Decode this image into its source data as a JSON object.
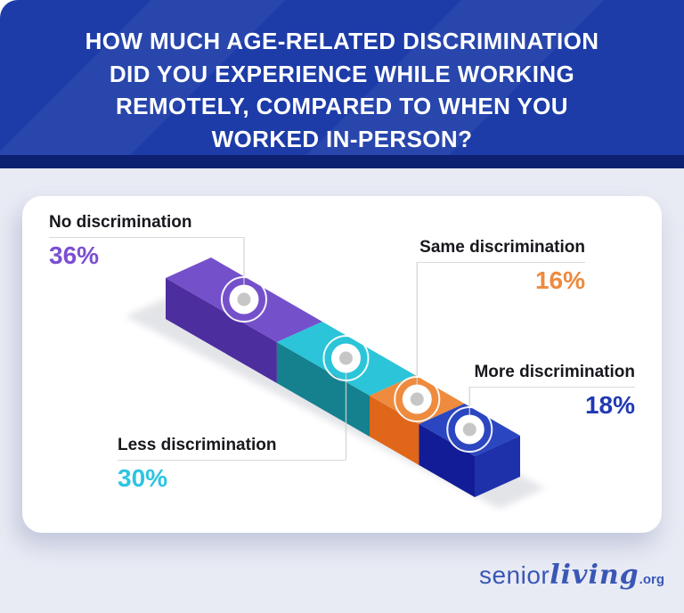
{
  "header": {
    "title_lines": [
      "HOW MUCH AGE-RELATED DISCRIMINATION",
      "DID YOU EXPERIENCE WHILE WORKING",
      "REMOTELY, COMPARED TO WHEN YOU",
      "WORKED IN-PERSON?"
    ],
    "bg_color": "#1d3ca8",
    "accent_strip_color": "#0d2173"
  },
  "chart_data": {
    "type": "bar",
    "subtype": "isometric-stacked-bar",
    "title": "How much age-related discrimination did you experience while working remotely, compared to when you worked in-person?",
    "categories": [
      "No discrimination",
      "Less discrimination",
      "Same discrimination",
      "More discrimination"
    ],
    "values": [
      36,
      30,
      16,
      18
    ],
    "unit": "%",
    "legend_position": "callout-labels",
    "segments": [
      {
        "label": "No discrimination",
        "value": 36,
        "value_label": "36%",
        "top_color": "#7550cb",
        "side_color": "#4c2e9e",
        "value_color": "#7b4fd1"
      },
      {
        "label": "Less discrimination",
        "value": 30,
        "value_label": "30%",
        "top_color": "#2bc4d8",
        "side_color": "#15808e",
        "value_color": "#2cc5e2"
      },
      {
        "label": "Same discrimination",
        "value": 16,
        "value_label": "16%",
        "top_color": "#ee8b3e",
        "side_color": "#e0661a",
        "value_color": "#ee8a3e"
      },
      {
        "label": "More discrimination",
        "value": 18,
        "value_label": "18%",
        "top_color": "#2a46c0",
        "side_color": "#121c96",
        "end_color": "#1e31ab",
        "value_color": "#2139b4"
      }
    ],
    "marker_dot_color": "#c6c6c6",
    "leader_line_color": "#d2d2d2",
    "shadow_color": "#e3e4e8"
  },
  "footer": {
    "logo": {
      "senior": "senior",
      "living": "living",
      "tld": ".org",
      "color": "#3a57b6"
    }
  }
}
